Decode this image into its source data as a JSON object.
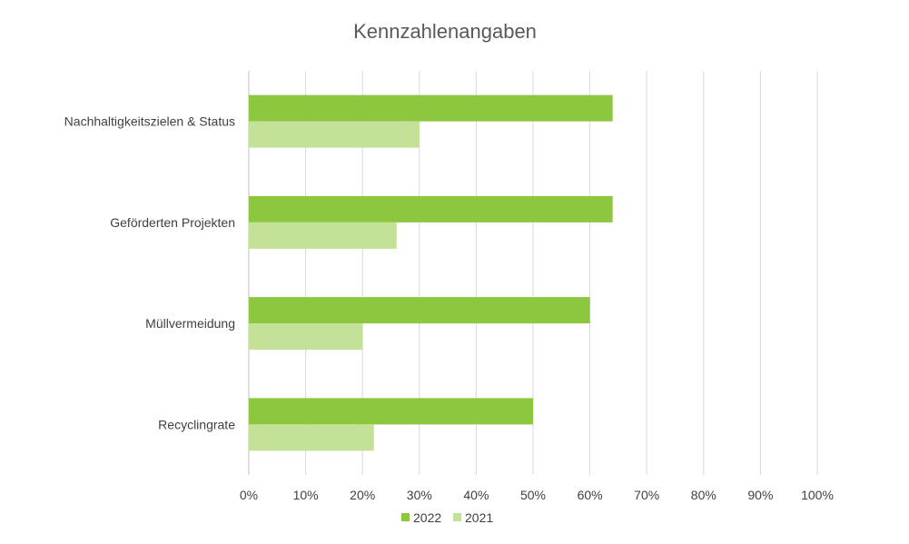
{
  "chart_data": {
    "type": "bar",
    "orientation": "horizontal",
    "title": "Kennzahlenangaben",
    "categories": [
      "Nachhaltigkeitszielen & Status",
      "Geförderten Projekten",
      "Müllvermeidung",
      "Recyclingrate"
    ],
    "series": [
      {
        "name": "2022",
        "color": "#8dc63f",
        "values": [
          64,
          64,
          60,
          50
        ]
      },
      {
        "name": "2021",
        "color": "#c3e297",
        "values": [
          30,
          26,
          20,
          22
        ]
      }
    ],
    "xlim": [
      0,
      100
    ],
    "xticks": [
      "0%",
      "10%",
      "20%",
      "30%",
      "40%",
      "50%",
      "60%",
      "70%",
      "80%",
      "90%",
      "100%"
    ],
    "grid": "vertical",
    "legend": "bottom"
  }
}
